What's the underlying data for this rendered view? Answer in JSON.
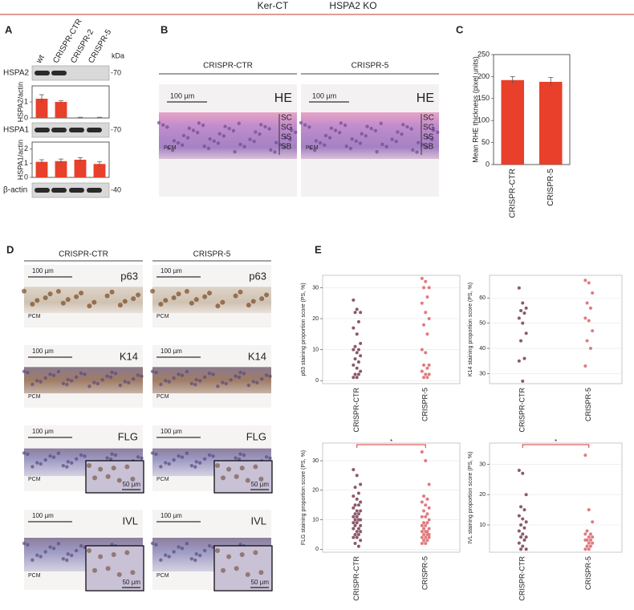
{
  "header": {
    "left": "Ker-CT",
    "right": "HSPA2 KO"
  },
  "panel_a": {
    "label": "A",
    "lanes": [
      "wt",
      "CRISPR-CTR",
      "CRISPR-2",
      "CRISPR-5"
    ],
    "unit": "kDa",
    "blots": [
      {
        "name": "HSPA2",
        "marker": "-70"
      },
      {
        "name": "HSPA1",
        "marker": "-70"
      },
      {
        "name": "β-actin",
        "marker": "-40"
      }
    ]
  },
  "panel_b": {
    "label": "B",
    "columns": [
      "CRISPR-CTR",
      "CRISPR-5"
    ],
    "images": [
      {
        "scale": "100 µm",
        "stain": "HE",
        "layers": [
          "SC",
          "SG",
          "SS",
          "SB"
        ],
        "pcm": "PCM"
      },
      {
        "scale": "100 µm",
        "stain": "HE",
        "layers": [
          "SC",
          "SG",
          "SS",
          "SB"
        ],
        "pcm": "PCM"
      }
    ]
  },
  "panel_c": {
    "label": "C"
  },
  "panel_d": {
    "label": "D",
    "columns": [
      "CRISPR-CTR",
      "CRISPR-5"
    ],
    "rows": [
      {
        "stain": "p63",
        "images": [
          {
            "scale": "100 µm",
            "pcm": "PCM"
          },
          {
            "scale": "100 µm",
            "pcm": "PCM"
          }
        ]
      },
      {
        "stain": "K14",
        "images": [
          {
            "scale": "100 µm",
            "pcm": "PCM"
          },
          {
            "scale": "100 µm",
            "pcm": "PCM"
          }
        ]
      },
      {
        "stain": "FLG",
        "images": [
          {
            "scale": "100 µm",
            "pcm": "PCM",
            "inset": "50 µm"
          },
          {
            "scale": "100 µm",
            "pcm": "PCM",
            "inset": "50 µm"
          }
        ]
      },
      {
        "stain": "IVL",
        "images": [
          {
            "scale": "100 µm",
            "pcm": "PCM",
            "inset": "50 µm"
          },
          {
            "scale": "100 µm",
            "pcm": "PCM",
            "inset": "50 µm"
          }
        ]
      }
    ]
  },
  "panel_e": {
    "label": "E"
  },
  "chart_data": [
    {
      "type": "bar",
      "ylabel": "HSPA2/actin",
      "values": [
        1.2,
        1.0,
        0.03,
        0.03
      ],
      "errors": [
        0.25,
        0.07,
        0.01,
        0.01
      ],
      "color": "#e8402a",
      "ylim": [
        0,
        2
      ],
      "yticks": [
        0,
        1
      ]
    },
    {
      "type": "bar",
      "ylabel": "HSPA1/actin",
      "values": [
        1.1,
        1.15,
        1.25,
        0.95
      ],
      "errors": [
        0.15,
        0.15,
        0.15,
        0.15
      ],
      "color": "#e8402a",
      "ylim": [
        0,
        2.5
      ],
      "yticks": [
        0,
        1,
        2
      ]
    },
    {
      "type": "bar",
      "ylabel": "Mean RHE thickness (pixel units)",
      "categories": [
        "CRISPR-CTR",
        "CRISPR-5"
      ],
      "values": [
        192,
        188
      ],
      "errors": [
        8,
        10
      ],
      "color": "#e8402a",
      "ylim": [
        0,
        250
      ],
      "yticks": [
        0,
        50,
        100,
        150,
        200,
        250
      ]
    },
    {
      "type": "strip",
      "ylabel": "p63 staining proportion score (PS, %)",
      "categories": [
        "CRISPR-CTR",
        "CRISPR-5"
      ],
      "colors": [
        "#8a5a6a",
        "#e07b80"
      ],
      "grid": true,
      "values": [
        [
          26,
          23,
          22,
          22,
          19,
          17,
          15,
          12,
          11,
          10,
          10,
          9,
          8,
          7,
          6,
          5,
          4,
          3,
          2,
          2,
          1,
          1
        ],
        [
          33,
          32,
          30,
          30,
          27,
          25,
          22,
          20,
          18,
          15,
          10,
          9,
          5,
          5,
          4,
          3,
          2,
          2,
          1,
          1
        ]
      ],
      "ylim": [
        -1,
        34
      ],
      "yticks": [
        0,
        10,
        20,
        30
      ]
    },
    {
      "type": "strip",
      "ylabel": "K14 staining proportion score (PS, %)",
      "categories": [
        "CRISPR-CTR",
        "CRISPR-5"
      ],
      "colors": [
        "#8a5a6a",
        "#e07b80"
      ],
      "grid": true,
      "values": [
        [
          64,
          58,
          56,
          55,
          54,
          52,
          50,
          46,
          43,
          36,
          35,
          27
        ],
        [
          67,
          66,
          62,
          58,
          56,
          52,
          51,
          47,
          43,
          40,
          33
        ]
      ],
      "ylim": [
        26,
        69
      ],
      "yticks": [
        30,
        40,
        50,
        60
      ]
    },
    {
      "type": "strip",
      "ylabel": "FLG staining proportion score (PS, %)",
      "categories": [
        "CRISPR-CTR",
        "CRISPR-5"
      ],
      "colors": [
        "#8a5a6a",
        "#e07b80"
      ],
      "grid": true,
      "annotation": "*",
      "values": [
        [
          27,
          25,
          22,
          21,
          19,
          18,
          17,
          16,
          15,
          15,
          14,
          13,
          13,
          12,
          12,
          11,
          11,
          10,
          10,
          10,
          9,
          9,
          8,
          8,
          7,
          7,
          6,
          6,
          5,
          5,
          4,
          4,
          3,
          2,
          1
        ],
        [
          33,
          30,
          22,
          18,
          17,
          16,
          15,
          14,
          13,
          12,
          11,
          11,
          10,
          9,
          9,
          8,
          8,
          7,
          7,
          6,
          6,
          6,
          5,
          5,
          5,
          4,
          4,
          4,
          3,
          3,
          2,
          2
        ]
      ],
      "ylim": [
        -1,
        36
      ],
      "yticks": [
        0,
        10,
        20,
        30
      ]
    },
    {
      "type": "strip",
      "ylabel": "IVL staining proportion score (PS, %)",
      "categories": [
        "CRISPR-CTR",
        "CRISPR-5"
      ],
      "colors": [
        "#8a5a6a",
        "#e07b80"
      ],
      "grid": true,
      "annotation": "*",
      "values": [
        [
          28,
          27,
          20,
          16,
          15,
          13,
          12,
          11,
          10,
          9,
          8,
          7,
          6,
          6,
          5,
          4,
          3,
          2,
          2
        ],
        [
          33,
          15,
          11,
          8,
          7,
          7,
          6,
          6,
          5,
          5,
          5,
          4,
          4,
          3,
          3,
          2,
          2
        ]
      ],
      "ylim": [
        1,
        37
      ],
      "yticks": [
        10,
        20,
        30
      ]
    }
  ]
}
